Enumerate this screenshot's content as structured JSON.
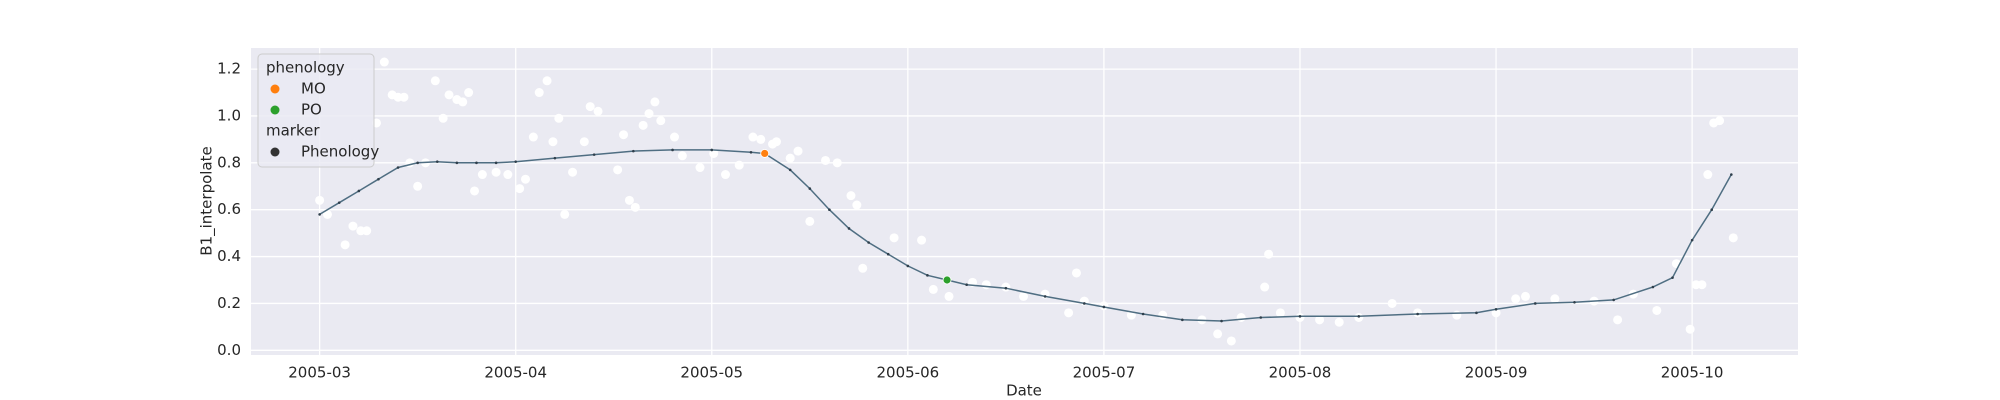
{
  "chart_data": {
    "type": "scatter",
    "xlabel": "Date",
    "ylabel": "B1_interpolate",
    "xlim": [
      2.65,
      10.54
    ],
    "ylim": [
      -0.02,
      1.29
    ],
    "xticks": [
      {
        "value": 3,
        "label": "2005-03"
      },
      {
        "value": 4,
        "label": "2005-04"
      },
      {
        "value": 5,
        "label": "2005-05"
      },
      {
        "value": 6,
        "label": "2005-06"
      },
      {
        "value": 7,
        "label": "2005-07"
      },
      {
        "value": 8,
        "label": "2005-08"
      },
      {
        "value": 9,
        "label": "2005-09"
      },
      {
        "value": 10,
        "label": "2005-10"
      }
    ],
    "yticks": [
      {
        "value": 0,
        "label": "0.0"
      },
      0.2,
      0.4,
      0.6,
      0.8,
      {
        "value": 1,
        "label": "1.0"
      },
      1.2
    ],
    "grid": true,
    "points": {
      "color": "#ffffff",
      "x": [
        3.0,
        3.04,
        3.13,
        3.17,
        3.21,
        3.24,
        3.29,
        3.33,
        3.37,
        3.4,
        3.43,
        3.46,
        3.5,
        3.54,
        3.59,
        3.63,
        3.66,
        3.7,
        3.73,
        3.76,
        3.79,
        3.83,
        3.9,
        3.96,
        4.02,
        4.05,
        4.09,
        4.12,
        4.16,
        4.19,
        4.22,
        4.25,
        4.29,
        4.35,
        4.38,
        4.42,
        4.52,
        4.55,
        4.58,
        4.61,
        4.65,
        4.68,
        4.71,
        4.74,
        4.81,
        4.85,
        4.94,
        5.01,
        5.07,
        5.14,
        5.21,
        5.25,
        5.31,
        5.33,
        5.4,
        5.44,
        5.5,
        5.58,
        5.64,
        5.71,
        5.74,
        5.77,
        5.93,
        6.07,
        6.13,
        6.21,
        6.33,
        6.4,
        6.5,
        6.59,
        6.7,
        6.82,
        6.86,
        6.9,
        7.0,
        7.14,
        7.3,
        7.5,
        7.58,
        7.65,
        7.7,
        7.82,
        7.84,
        7.9,
        8.0,
        8.1,
        8.2,
        8.3,
        8.47,
        8.6,
        8.8,
        9.0,
        9.1,
        9.15,
        9.3,
        9.5,
        9.62,
        9.7,
        9.82,
        9.92,
        9.99,
        10.02,
        10.05,
        10.08,
        10.11,
        10.14,
        10.21
      ],
      "y": [
        0.64,
        0.58,
        0.45,
        0.53,
        0.51,
        0.51,
        0.97,
        1.23,
        1.09,
        1.08,
        1.08,
        0.8,
        0.7,
        0.8,
        1.15,
        0.99,
        1.09,
        1.07,
        1.06,
        1.1,
        0.68,
        0.75,
        0.76,
        0.75,
        0.69,
        0.73,
        0.91,
        1.1,
        1.15,
        0.89,
        0.99,
        0.58,
        0.76,
        0.89,
        1.04,
        1.02,
        0.77,
        0.92,
        0.64,
        0.61,
        0.96,
        1.01,
        1.06,
        0.98,
        0.91,
        0.83,
        0.78,
        0.84,
        0.75,
        0.79,
        0.91,
        0.9,
        0.88,
        0.89,
        0.82,
        0.85,
        0.55,
        0.81,
        0.8,
        0.66,
        0.62,
        0.35,
        0.48,
        0.47,
        0.26,
        0.23,
        0.29,
        0.28,
        0.27,
        0.23,
        0.24,
        0.16,
        0.33,
        0.21,
        0.19,
        0.15,
        0.15,
        0.13,
        0.07,
        0.04,
        0.14,
        0.27,
        0.41,
        0.16,
        0.14,
        0.13,
        0.12,
        0.14,
        0.2,
        0.16,
        0.15,
        0.16,
        0.22,
        0.23,
        0.22,
        0.21,
        0.13,
        0.24,
        0.17,
        0.37,
        0.09,
        0.28,
        0.28,
        0.75,
        0.97,
        0.98,
        0.48
      ]
    },
    "line": {
      "color": "#4f6e82",
      "x": [
        3.0,
        3.1,
        3.2,
        3.3,
        3.4,
        3.5,
        3.6,
        3.7,
        3.8,
        3.9,
        4.0,
        4.2,
        4.4,
        4.6,
        4.8,
        5.0,
        5.2,
        5.27,
        5.4,
        5.5,
        5.6,
        5.7,
        5.8,
        5.9,
        6.0,
        6.1,
        6.2,
        6.3,
        6.5,
        6.7,
        6.9,
        7.0,
        7.2,
        7.4,
        7.6,
        7.8,
        8.0,
        8.3,
        8.6,
        8.9,
        9.0,
        9.2,
        9.4,
        9.6,
        9.8,
        9.9,
        10.0,
        10.1,
        10.2
      ],
      "y": [
        0.58,
        0.63,
        0.68,
        0.73,
        0.78,
        0.8,
        0.805,
        0.8,
        0.8,
        0.8,
        0.805,
        0.82,
        0.835,
        0.85,
        0.855,
        0.855,
        0.845,
        0.84,
        0.77,
        0.69,
        0.6,
        0.52,
        0.46,
        0.41,
        0.36,
        0.32,
        0.3,
        0.28,
        0.265,
        0.23,
        0.2,
        0.185,
        0.155,
        0.13,
        0.125,
        0.14,
        0.145,
        0.145,
        0.155,
        0.16,
        0.175,
        0.2,
        0.205,
        0.215,
        0.27,
        0.31,
        0.47,
        0.6,
        0.75
      ]
    },
    "series": [
      {
        "name": "MO",
        "color": "#ff7f0e",
        "x": [
          5.27
        ],
        "values": [
          0.84
        ]
      },
      {
        "name": "PO",
        "color": "#2ca02c",
        "x": [
          6.2
        ],
        "values": [
          0.3
        ]
      }
    ],
    "legend": {
      "hue_title": "phenology",
      "style_title": "marker",
      "style_entries": [
        {
          "name": "Phenology",
          "color": "#333333"
        }
      ],
      "position": "upper left"
    }
  }
}
